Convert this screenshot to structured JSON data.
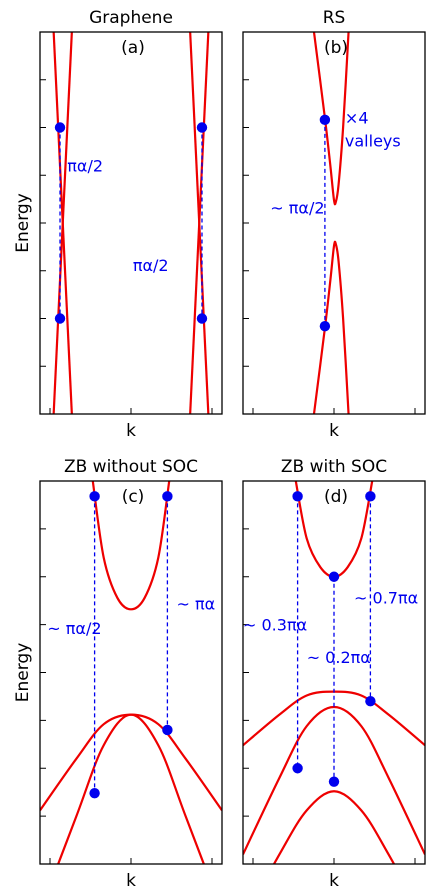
{
  "chart_data": [
    {
      "type": "line",
      "title": "Graphene",
      "tag": "(a)",
      "xlabel": "k",
      "ylabel": "Energy",
      "xlim": [
        -1,
        1
      ],
      "ylim": [
        -1,
        1
      ],
      "series": [
        {
          "points": [
            [
              -0.85,
              1.0
            ],
            [
              -0.65,
              -1.0
            ]
          ]
        },
        {
          "points": [
            [
              -0.85,
              -1.0
            ],
            [
              -0.65,
              1.0
            ]
          ]
        },
        {
          "points": [
            [
              0.65,
              1.0
            ],
            [
              0.85,
              -1.0
            ]
          ]
        },
        {
          "points": [
            [
              0.65,
              -1.0
            ],
            [
              0.85,
              1.0
            ]
          ]
        }
      ],
      "dashed": [
        {
          "x": -0.78,
          "y": [
            0.5,
            -0.5
          ]
        },
        {
          "x": 0.78,
          "y": [
            0.5,
            -0.5
          ]
        }
      ],
      "markers": [
        [
          -0.78,
          0.5
        ],
        [
          -0.78,
          -0.5
        ],
        [
          0.78,
          0.5
        ],
        [
          0.78,
          -0.5
        ]
      ],
      "annotations": [
        {
          "text": "πα/2",
          "x": -0.7,
          "y": 0.27
        },
        {
          "text": "πα/2",
          "x": 0.02,
          "y": -0.25
        }
      ]
    },
    {
      "type": "line",
      "title": "RS",
      "tag": "(b)",
      "xlabel": "k",
      "ylabel": "",
      "xlim": [
        -1,
        1
      ],
      "ylim": [
        -1,
        1
      ],
      "series": [
        {
          "points": [
            [
              -0.22,
              1.0
            ],
            [
              -0.1,
              0.55
            ],
            [
              -0.04,
              0.3
            ],
            [
              0.0,
              0.12
            ],
            [
              0.02,
              0.11
            ],
            [
              0.05,
              0.2
            ],
            [
              0.1,
              0.5
            ],
            [
              0.16,
              1.0
            ]
          ]
        },
        {
          "points": [
            [
              -0.22,
              -1.0
            ],
            [
              -0.1,
              -0.55
            ],
            [
              -0.04,
              -0.3
            ],
            [
              0.0,
              -0.12
            ],
            [
              0.02,
              -0.11
            ],
            [
              0.05,
              -0.2
            ],
            [
              0.1,
              -0.5
            ],
            [
              0.16,
              -1.0
            ]
          ]
        }
      ],
      "dashed": [
        {
          "x": -0.1,
          "y": [
            0.54,
            -0.54
          ]
        }
      ],
      "markers": [
        [
          -0.1,
          0.54
        ],
        [
          -0.1,
          -0.54
        ]
      ],
      "annotations": [
        {
          "text": "×4",
          "x": 0.12,
          "y": 0.52
        },
        {
          "text": "valleys",
          "x": 0.12,
          "y": 0.4
        },
        {
          "text": "~ πα/2",
          "x": -0.7,
          "y": 0.05
        }
      ]
    },
    {
      "type": "line",
      "title": "ZB without SOC",
      "tag": "(c)",
      "xlabel": "k",
      "ylabel": "Energy",
      "xlim": [
        -1,
        1
      ],
      "ylim": [
        -1,
        1
      ],
      "series": [
        {
          "points": [
            [
              -0.42,
              1.0
            ],
            [
              -0.3,
              0.6
            ],
            [
              -0.15,
              0.39
            ],
            [
              0.0,
              0.33
            ],
            [
              0.15,
              0.39
            ],
            [
              0.3,
              0.6
            ],
            [
              0.42,
              1.0
            ]
          ]
        },
        {
          "points": [
            [
              -1.0,
              -0.72
            ],
            [
              -0.6,
              -0.45
            ],
            [
              -0.3,
              -0.27
            ],
            [
              0.0,
              -0.22
            ],
            [
              0.3,
              -0.27
            ],
            [
              0.6,
              -0.45
            ],
            [
              1.0,
              -0.72
            ]
          ]
        },
        {
          "points": [
            [
              -1.0,
              -1.25
            ],
            [
              -0.6,
              -0.75
            ],
            [
              -0.3,
              -0.38
            ],
            [
              0.0,
              -0.22
            ],
            [
              0.3,
              -0.38
            ],
            [
              0.6,
              -0.75
            ],
            [
              1.0,
              -1.25
            ]
          ]
        }
      ],
      "dashed": [
        {
          "x": -0.4,
          "y": [
            0.92,
            -0.63
          ]
        },
        {
          "x": 0.4,
          "y": [
            0.92,
            -0.3
          ]
        }
      ],
      "markers": [
        [
          -0.4,
          0.92
        ],
        [
          -0.4,
          -0.63
        ],
        [
          0.4,
          0.92
        ],
        [
          0.4,
          -0.3
        ]
      ],
      "annotations": [
        {
          "text": "~ πα/2",
          "x": -0.92,
          "y": 0.2
        },
        {
          "text": "~ πα",
          "x": 0.5,
          "y": 0.33
        }
      ]
    },
    {
      "type": "line",
      "title": "ZB with SOC",
      "tag": "(d)",
      "xlabel": "k",
      "ylabel": "",
      "xlim": [
        -1,
        1
      ],
      "ylim": [
        -1,
        1
      ],
      "series": [
        {
          "points": [
            [
              -0.42,
              1.0
            ],
            [
              -0.3,
              0.7
            ],
            [
              -0.15,
              0.55
            ],
            [
              0.0,
              0.5
            ],
            [
              0.15,
              0.55
            ],
            [
              0.3,
              0.7
            ],
            [
              0.42,
              1.0
            ]
          ]
        },
        {
          "points": [
            [
              -1.0,
              -0.38
            ],
            [
              -0.6,
              -0.22
            ],
            [
              -0.3,
              -0.12
            ],
            [
              0.0,
              -0.1
            ],
            [
              0.3,
              -0.12
            ],
            [
              0.6,
              -0.22
            ],
            [
              1.0,
              -0.38
            ]
          ]
        },
        {
          "points": [
            [
              -1.0,
              -0.95
            ],
            [
              -0.6,
              -0.55
            ],
            [
              -0.3,
              -0.28
            ],
            [
              0.0,
              -0.18
            ],
            [
              0.3,
              -0.28
            ],
            [
              0.6,
              -0.55
            ],
            [
              1.0,
              -0.95
            ]
          ]
        },
        {
          "points": [
            [
              -1.0,
              -1.3
            ],
            [
              -0.6,
              -0.95
            ],
            [
              -0.3,
              -0.72
            ],
            [
              0.0,
              -0.62
            ],
            [
              0.3,
              -0.72
            ],
            [
              0.6,
              -0.95
            ],
            [
              1.0,
              -1.3
            ]
          ]
        }
      ],
      "dashed": [
        {
          "x": -0.4,
          "y": [
            0.92,
            -0.5
          ]
        },
        {
          "x": 0.0,
          "y": [
            0.5,
            -0.57
          ]
        },
        {
          "x": 0.4,
          "y": [
            0.92,
            -0.15
          ]
        }
      ],
      "markers": [
        [
          -0.4,
          0.92
        ],
        [
          -0.4,
          -0.5
        ],
        [
          0.0,
          0.5
        ],
        [
          0.0,
          -0.57
        ],
        [
          0.4,
          0.92
        ],
        [
          0.4,
          -0.15
        ]
      ],
      "annotations": [
        {
          "text": "~ 0.3πα",
          "x": -1.0,
          "y": 0.22
        },
        {
          "text": "~ 0.2πα",
          "x": -0.3,
          "y": 0.05
        },
        {
          "text": "~ 0.7πα",
          "x": 0.22,
          "y": 0.36
        }
      ]
    }
  ]
}
